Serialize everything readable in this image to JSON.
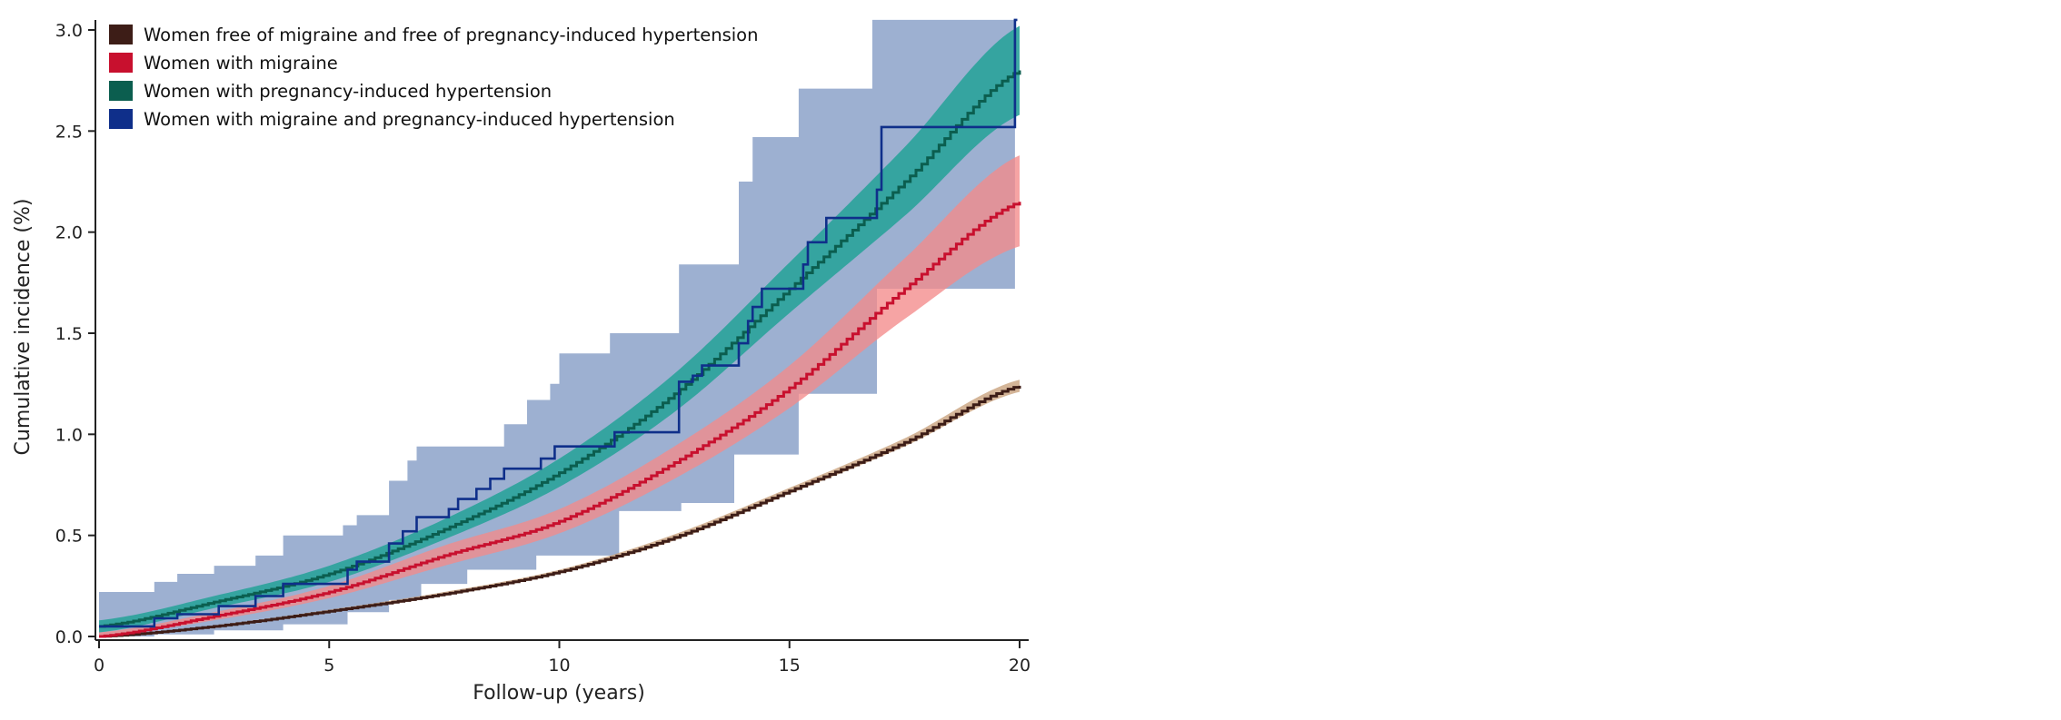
{
  "chart_data": {
    "type": "line",
    "title": "",
    "xlabel": "Follow-up (years)",
    "ylabel": "Cumulative incidence (%)",
    "xlim": [
      0,
      20
    ],
    "ylim": [
      0,
      3.0
    ],
    "xticks": [
      0,
      5,
      10,
      15,
      20
    ],
    "xtick_labels": [
      "0",
      "5",
      "10",
      "15",
      "20"
    ],
    "yticks": [
      0,
      0.5,
      1.0,
      1.5,
      2.0,
      2.5,
      3.0
    ],
    "ytick_labels": [
      "0.0",
      "0.5",
      "1.0",
      "1.5",
      "2.0",
      "2.5",
      "3.0"
    ],
    "grid": false,
    "legend_position": "top-left",
    "series": [
      {
        "name": "Women free of migraine and free of pregnancy-induced hypertension",
        "color": "#3d1d17",
        "band_color": "#c9a27e",
        "style": "smooth",
        "x": [
          0,
          2.5,
          5,
          7.5,
          10,
          12.5,
          15,
          17.5,
          20
        ],
        "values": [
          0.0,
          0.05,
          0.125,
          0.21,
          0.32,
          0.49,
          0.72,
          0.96,
          1.24
        ],
        "ci_lower": [
          0.0,
          0.045,
          0.118,
          0.2,
          0.31,
          0.475,
          0.705,
          0.94,
          1.21
        ],
        "ci_upper": [
          0.0,
          0.055,
          0.132,
          0.22,
          0.33,
          0.505,
          0.735,
          0.98,
          1.27
        ]
      },
      {
        "name": "Women with migraine",
        "color": "#c8102e",
        "band_color": "#f48a8a",
        "style": "smooth",
        "x": [
          0,
          2.5,
          5,
          7.5,
          10,
          12.5,
          15,
          17.5,
          20
        ],
        "values": [
          0.0,
          0.1,
          0.22,
          0.4,
          0.57,
          0.86,
          1.23,
          1.72,
          2.15
        ],
        "ci_lower": [
          0.0,
          0.08,
          0.19,
          0.35,
          0.51,
          0.78,
          1.13,
          1.57,
          1.93
        ],
        "ci_upper": [
          0.02,
          0.12,
          0.25,
          0.45,
          0.63,
          0.94,
          1.34,
          1.87,
          2.38
        ]
      },
      {
        "name": "Women with pregnancy-induced hypertension",
        "color": "#0b5e4f",
        "band_color": "#2aa39a",
        "style": "smooth",
        "x": [
          0,
          2.5,
          5,
          7.5,
          10,
          12.5,
          15,
          17.5,
          20
        ],
        "values": [
          0.05,
          0.17,
          0.31,
          0.53,
          0.81,
          1.2,
          1.72,
          2.25,
          2.8
        ],
        "ci_lower": [
          0.02,
          0.14,
          0.27,
          0.48,
          0.74,
          1.11,
          1.6,
          2.08,
          2.58
        ],
        "ci_upper": [
          0.08,
          0.2,
          0.35,
          0.58,
          0.88,
          1.3,
          1.85,
          2.42,
          3.02
        ]
      },
      {
        "name": "Women with migraine and pregnancy-induced hypertension",
        "color": "#0f2f8a",
        "band_color": "#9db0d1",
        "style": "step",
        "x": [
          0,
          1.2,
          1.7,
          2.6,
          3.4,
          4.0,
          5.4,
          5.6,
          6.3,
          6.6,
          6.9,
          7.6,
          7.8,
          8.2,
          8.5,
          8.8,
          9.6,
          9.9,
          11.2,
          12.6,
          12.9,
          13.1,
          13.9,
          14.1,
          14.2,
          14.4,
          15.3,
          15.4,
          15.8,
          16.9,
          17.0,
          19.9,
          19.95
        ],
        "values": [
          0.05,
          0.09,
          0.11,
          0.15,
          0.2,
          0.26,
          0.33,
          0.37,
          0.46,
          0.52,
          0.59,
          0.63,
          0.68,
          0.73,
          0.78,
          0.83,
          0.88,
          0.94,
          1.01,
          1.26,
          1.29,
          1.34,
          1.45,
          1.56,
          1.63,
          1.72,
          1.84,
          1.95,
          2.07,
          2.21,
          2.52,
          3.05,
          3.05
        ],
        "ci_upper_x": [
          0,
          1.2,
          1.7,
          2.5,
          3.4,
          4.0,
          5.3,
          5.6,
          6.3,
          6.7,
          6.9,
          8.8,
          9.3,
          9.8,
          10.0,
          11.1,
          12.6,
          13.9,
          14.2,
          15.2,
          16.8,
          19.9
        ],
        "ci_upper": [
          0.22,
          0.27,
          0.31,
          0.35,
          0.4,
          0.5,
          0.55,
          0.6,
          0.77,
          0.87,
          0.94,
          1.05,
          1.17,
          1.25,
          1.4,
          1.5,
          1.84,
          2.25,
          2.47,
          2.71,
          3.05,
          3.05
        ],
        "ci_lower_x": [
          0,
          1.2,
          2.5,
          4.0,
          5.4,
          6.3,
          7.0,
          8.0,
          9.5,
          11.3,
          12.65,
          13.8,
          15.2,
          16.9,
          19.9
        ],
        "ci_lower": [
          0.0,
          0.01,
          0.03,
          0.06,
          0.12,
          0.18,
          0.26,
          0.33,
          0.4,
          0.62,
          0.66,
          0.9,
          1.2,
          1.72,
          1.72
        ]
      }
    ]
  }
}
